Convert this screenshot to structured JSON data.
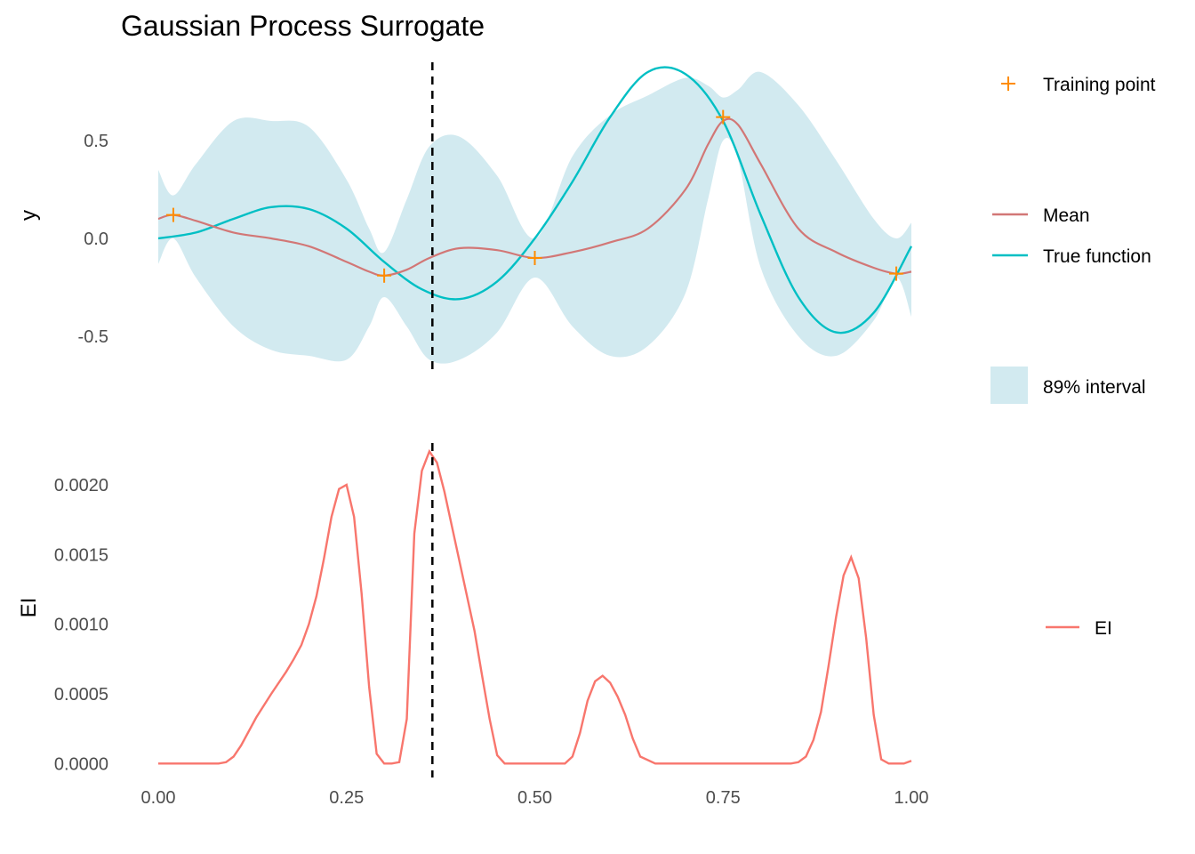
{
  "chart_data": {
    "title": "Gaussian Process Surrogate",
    "type": "line",
    "x_axis": {
      "range": [
        0,
        1
      ],
      "ticks": [
        0,
        0.25,
        0.5,
        0.75,
        1
      ],
      "tick_labels": [
        "0.00",
        "0.25",
        "0.50",
        "0.75",
        "1.00"
      ]
    },
    "proposal_x": 0.364,
    "colors": {
      "mean": "#d27776",
      "true_function": "#00bfc4",
      "interval": "#d2eaf0",
      "training": "#ff8c00",
      "ei": "#f8766d",
      "vline": "#000000"
    },
    "top_panel": {
      "ylabel": "y",
      "ylim": [
        -0.7,
        0.9
      ],
      "yticks": [
        0.5,
        0,
        -0.5
      ],
      "ytick_labels": [
        "0.5",
        "0.0",
        "-0.5"
      ],
      "x": [
        0,
        0.02,
        0.05,
        0.1,
        0.15,
        0.2,
        0.25,
        0.28,
        0.3,
        0.33,
        0.36,
        0.4,
        0.45,
        0.5,
        0.55,
        0.6,
        0.65,
        0.7,
        0.73,
        0.75,
        0.77,
        0.8,
        0.85,
        0.9,
        0.95,
        0.98,
        1
      ],
      "mean": [
        0.1,
        0.12,
        0.09,
        0.03,
        0.0,
        -0.04,
        -0.12,
        -0.17,
        -0.19,
        -0.16,
        -0.1,
        -0.05,
        -0.06,
        -0.1,
        -0.07,
        -0.02,
        0.05,
        0.25,
        0.48,
        0.6,
        0.58,
        0.38,
        0.05,
        -0.07,
        -0.15,
        -0.18,
        -0.17
      ],
      "lower": [
        -0.13,
        0.0,
        -0.2,
        -0.45,
        -0.57,
        -0.6,
        -0.62,
        -0.45,
        -0.3,
        -0.45,
        -0.62,
        -0.62,
        -0.48,
        -0.2,
        -0.45,
        -0.6,
        -0.55,
        -0.28,
        0.2,
        0.5,
        0.4,
        -0.15,
        -0.5,
        -0.6,
        -0.42,
        -0.2,
        -0.4
      ],
      "upper": [
        0.35,
        0.22,
        0.38,
        0.6,
        0.6,
        0.57,
        0.3,
        0.05,
        -0.07,
        0.2,
        0.47,
        0.52,
        0.32,
        0.0,
        0.42,
        0.63,
        0.73,
        0.82,
        0.78,
        0.72,
        0.76,
        0.85,
        0.68,
        0.4,
        0.1,
        0.0,
        0.08
      ],
      "true_x": [
        0,
        0.05,
        0.1,
        0.15,
        0.2,
        0.25,
        0.3,
        0.35,
        0.4,
        0.45,
        0.5,
        0.55,
        0.6,
        0.65,
        0.7,
        0.75,
        0.8,
        0.85,
        0.9,
        0.95,
        1
      ],
      "true_y": [
        0.0,
        0.03,
        0.1,
        0.16,
        0.15,
        0.05,
        -0.12,
        -0.26,
        -0.31,
        -0.22,
        0.0,
        0.29,
        0.62,
        0.85,
        0.84,
        0.6,
        0.12,
        -0.3,
        -0.48,
        -0.38,
        -0.04
      ],
      "training_points": [
        {
          "x": 0.02,
          "y": 0.12
        },
        {
          "x": 0.3,
          "y": -0.19
        },
        {
          "x": 0.5,
          "y": -0.1
        },
        {
          "x": 0.75,
          "y": 0.62
        },
        {
          "x": 0.98,
          "y": -0.18
        }
      ]
    },
    "bottom_panel": {
      "ylabel": "EI",
      "ylim": [
        -0.0001,
        0.0023
      ],
      "yticks": [
        0.002,
        0.0015,
        0.001,
        0.0005,
        0
      ],
      "ytick_labels": [
        "0.0020",
        "0.0015",
        "0.0010",
        "0.0005",
        "0.0000"
      ],
      "x": [
        0,
        0.05,
        0.08,
        0.09,
        0.1,
        0.11,
        0.13,
        0.15,
        0.17,
        0.18,
        0.19,
        0.2,
        0.21,
        0.22,
        0.23,
        0.24,
        0.25,
        0.26,
        0.27,
        0.28,
        0.29,
        0.3,
        0.31,
        0.32,
        0.33,
        0.34,
        0.35,
        0.36,
        0.37,
        0.38,
        0.39,
        0.4,
        0.41,
        0.42,
        0.43,
        0.44,
        0.45,
        0.46,
        0.47,
        0.5,
        0.54,
        0.55,
        0.56,
        0.57,
        0.58,
        0.59,
        0.6,
        0.61,
        0.62,
        0.63,
        0.64,
        0.66,
        0.7,
        0.8,
        0.84,
        0.85,
        0.86,
        0.87,
        0.88,
        0.89,
        0.9,
        0.91,
        0.92,
        0.93,
        0.94,
        0.95,
        0.96,
        0.97,
        0.98,
        0.99,
        1
      ],
      "ei": [
        0,
        0,
        0,
        1e-05,
        5e-05,
        0.00013,
        0.00033,
        0.0005,
        0.00066,
        0.00075,
        0.00085,
        0.001,
        0.0012,
        0.00147,
        0.00177,
        0.00197,
        0.002,
        0.00177,
        0.00122,
        0.00055,
        7e-05,
        0,
        0,
        1e-05,
        0.00032,
        0.00165,
        0.0021,
        0.00224,
        0.00216,
        0.00195,
        0.0017,
        0.00145,
        0.0012,
        0.00095,
        0.00063,
        0.00032,
        6e-05,
        0,
        0,
        0,
        0,
        5e-05,
        0.00022,
        0.00045,
        0.00059,
        0.00063,
        0.00058,
        0.00048,
        0.00035,
        0.00018,
        5e-05,
        0,
        0,
        0,
        0,
        1e-05,
        5e-05,
        0.00017,
        0.00037,
        0.0007,
        0.00105,
        0.00135,
        0.00148,
        0.00133,
        0.0009,
        0.00035,
        3e-05,
        0,
        0,
        0,
        2e-05
      ]
    },
    "legends": {
      "training_point": "Training point",
      "mean": "Mean",
      "true_function": "True function",
      "interval": "89% interval",
      "ei": "EI"
    }
  }
}
